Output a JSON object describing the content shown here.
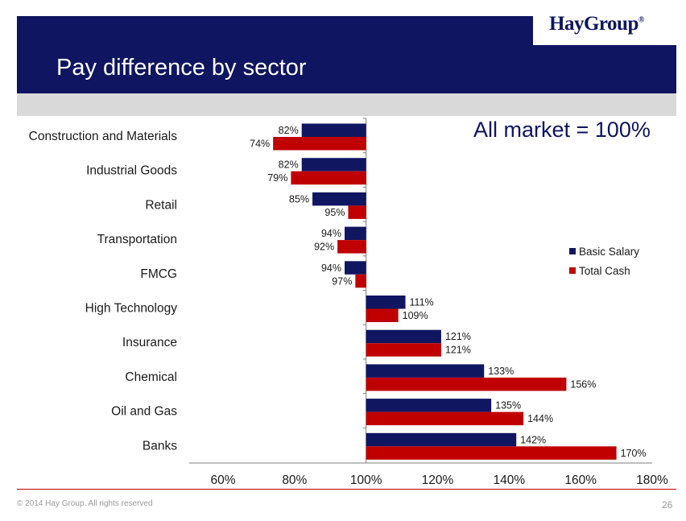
{
  "header": {
    "title": "Pay difference by sector",
    "logo_text": "HayGroup",
    "logo_mark": "®"
  },
  "note": "All market = 100%",
  "footer": {
    "copyright": "© 2014 Hay Group. All rights reserved",
    "page_number": "26"
  },
  "colors": {
    "header_bg": "#0f1560",
    "basic_salary": "#101660",
    "total_cash": "#c00000"
  },
  "chart_data": {
    "type": "bar",
    "orientation": "horizontal",
    "baseline": 100,
    "xlim": [
      60,
      180
    ],
    "xticks": [
      60,
      80,
      100,
      120,
      140,
      160,
      180
    ],
    "tick_suffix": "%",
    "categories": [
      "Construction and Materials",
      "Industrial Goods",
      "Retail",
      "Transportation",
      "FMCG",
      "High Technology",
      "Insurance",
      "Chemical",
      "Oil and Gas",
      "Banks"
    ],
    "series": [
      {
        "name": "Basic Salary",
        "color": "#101660",
        "values": [
          82,
          82,
          85,
          94,
          94,
          111,
          121,
          133,
          135,
          142
        ]
      },
      {
        "name": "Total Cash",
        "color": "#c00000",
        "values": [
          74,
          79,
          95,
          92,
          97,
          109,
          121,
          156,
          144,
          170
        ]
      }
    ],
    "legend_position": "right",
    "grid": false
  }
}
